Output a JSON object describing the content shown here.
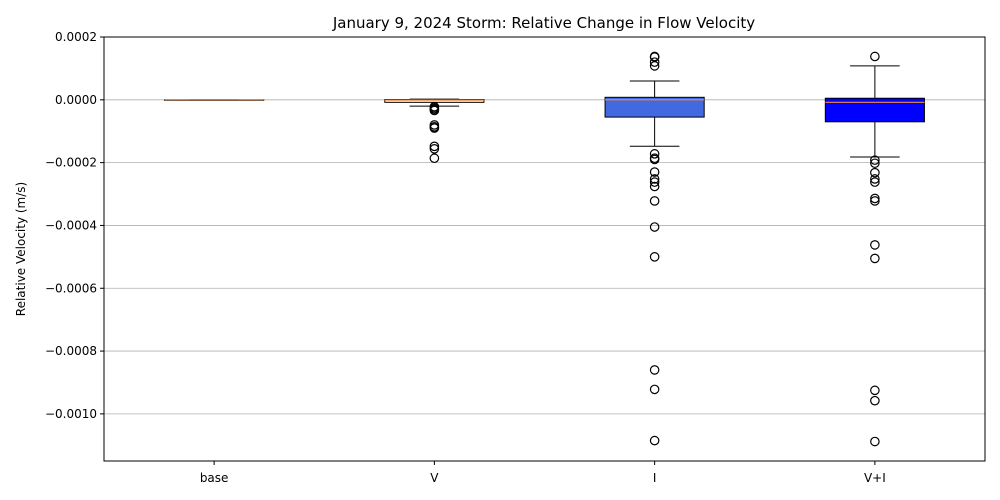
{
  "chart_data": {
    "type": "box",
    "title": "January 9, 2024 Storm: Relative Change in Flow Velocity",
    "xlabel": "",
    "ylabel": "Relative Velocity (m/s)",
    "ylim": [
      -0.00115,
      0.0002
    ],
    "grid": "horizontal",
    "yticks": [
      0.0002,
      0.0,
      -0.0002,
      -0.0004,
      -0.0006,
      -0.0008,
      -0.001
    ],
    "ytick_labels": [
      "0.0002",
      "0.0000",
      "−0.0002",
      "−0.0004",
      "−0.0006",
      "−0.0008",
      "−0.0010"
    ],
    "categories": [
      "base",
      "V",
      "I",
      "V+I"
    ],
    "boxes": [
      {
        "label": "base",
        "color": "#ffffff",
        "whisker_low": 0.0,
        "q1": 0.0,
        "median": 0.0,
        "q3": 0.0,
        "whisker_high": 0.0,
        "outliers": []
      },
      {
        "label": "V",
        "color": "#ffffff",
        "whisker_low": -2e-05,
        "q1": -8e-06,
        "median": -1e-06,
        "q3": 1e-06,
        "whisker_high": 2e-06,
        "outliers": [
          -2.2e-05,
          -2.6e-05,
          -3e-05,
          -3.4e-05,
          -8e-05,
          -8.6e-05,
          -9e-05,
          -0.000148,
          -0.000156,
          -0.000186
        ]
      },
      {
        "label": "I",
        "color": "#4169e1",
        "whisker_low": -0.000148,
        "q1": -5.5e-05,
        "median": 0.0,
        "q3": 8e-06,
        "whisker_high": 6e-05,
        "outliers": [
          0.000138,
          0.000136,
          0.00012,
          0.000108,
          -0.000172,
          -0.000186,
          -0.00019,
          -0.00023,
          -0.000252,
          -0.000262,
          -0.000276,
          -0.000322,
          -0.000405,
          -0.0005,
          -0.00086,
          -0.000922,
          -0.001085
        ]
      },
      {
        "label": "V+I",
        "color": "#0000ff",
        "whisker_low": -0.000182,
        "q1": -7e-05,
        "median": -8e-06,
        "q3": 5e-06,
        "whisker_high": 0.000108,
        "outliers": [
          0.000138,
          -0.000192,
          -0.000202,
          -0.000232,
          -0.000252,
          -0.000262,
          -0.000314,
          -0.000322,
          -0.000462,
          -0.000505,
          -0.000925,
          -0.000958,
          -0.001088
        ]
      }
    ],
    "median_color": "#f08a3c",
    "whisker_color": "#000000"
  }
}
